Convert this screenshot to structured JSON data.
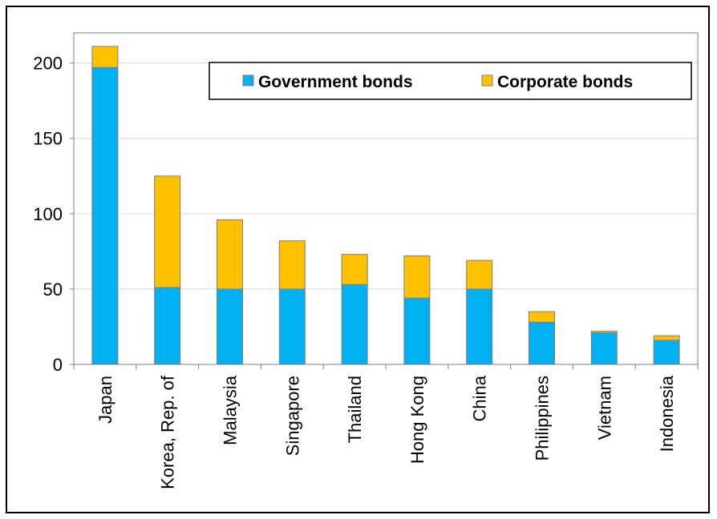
{
  "chart_data": {
    "type": "bar",
    "stacked": true,
    "categories": [
      "Japan",
      "Korea, Rep. of",
      "Malaysia",
      "Singapore",
      "Thailand",
      "Hong Kong",
      "China",
      "Philippines",
      "Vietnam",
      "Indonesia"
    ],
    "series": [
      {
        "name": "Government bonds",
        "color": "#00B0F0",
        "values": [
          197,
          51,
          50,
          50,
          53,
          44,
          50,
          28,
          21,
          16
        ]
      },
      {
        "name": "Corporate bonds",
        "color": "#FFC000",
        "values": [
          14,
          74,
          46,
          32,
          20,
          28,
          19,
          7,
          1,
          3
        ]
      }
    ],
    "ylim": [
      0,
      220
    ],
    "yticks": [
      "0",
      "50",
      "100",
      "150",
      "200"
    ],
    "grid": true,
    "legend_position": "top-right"
  }
}
